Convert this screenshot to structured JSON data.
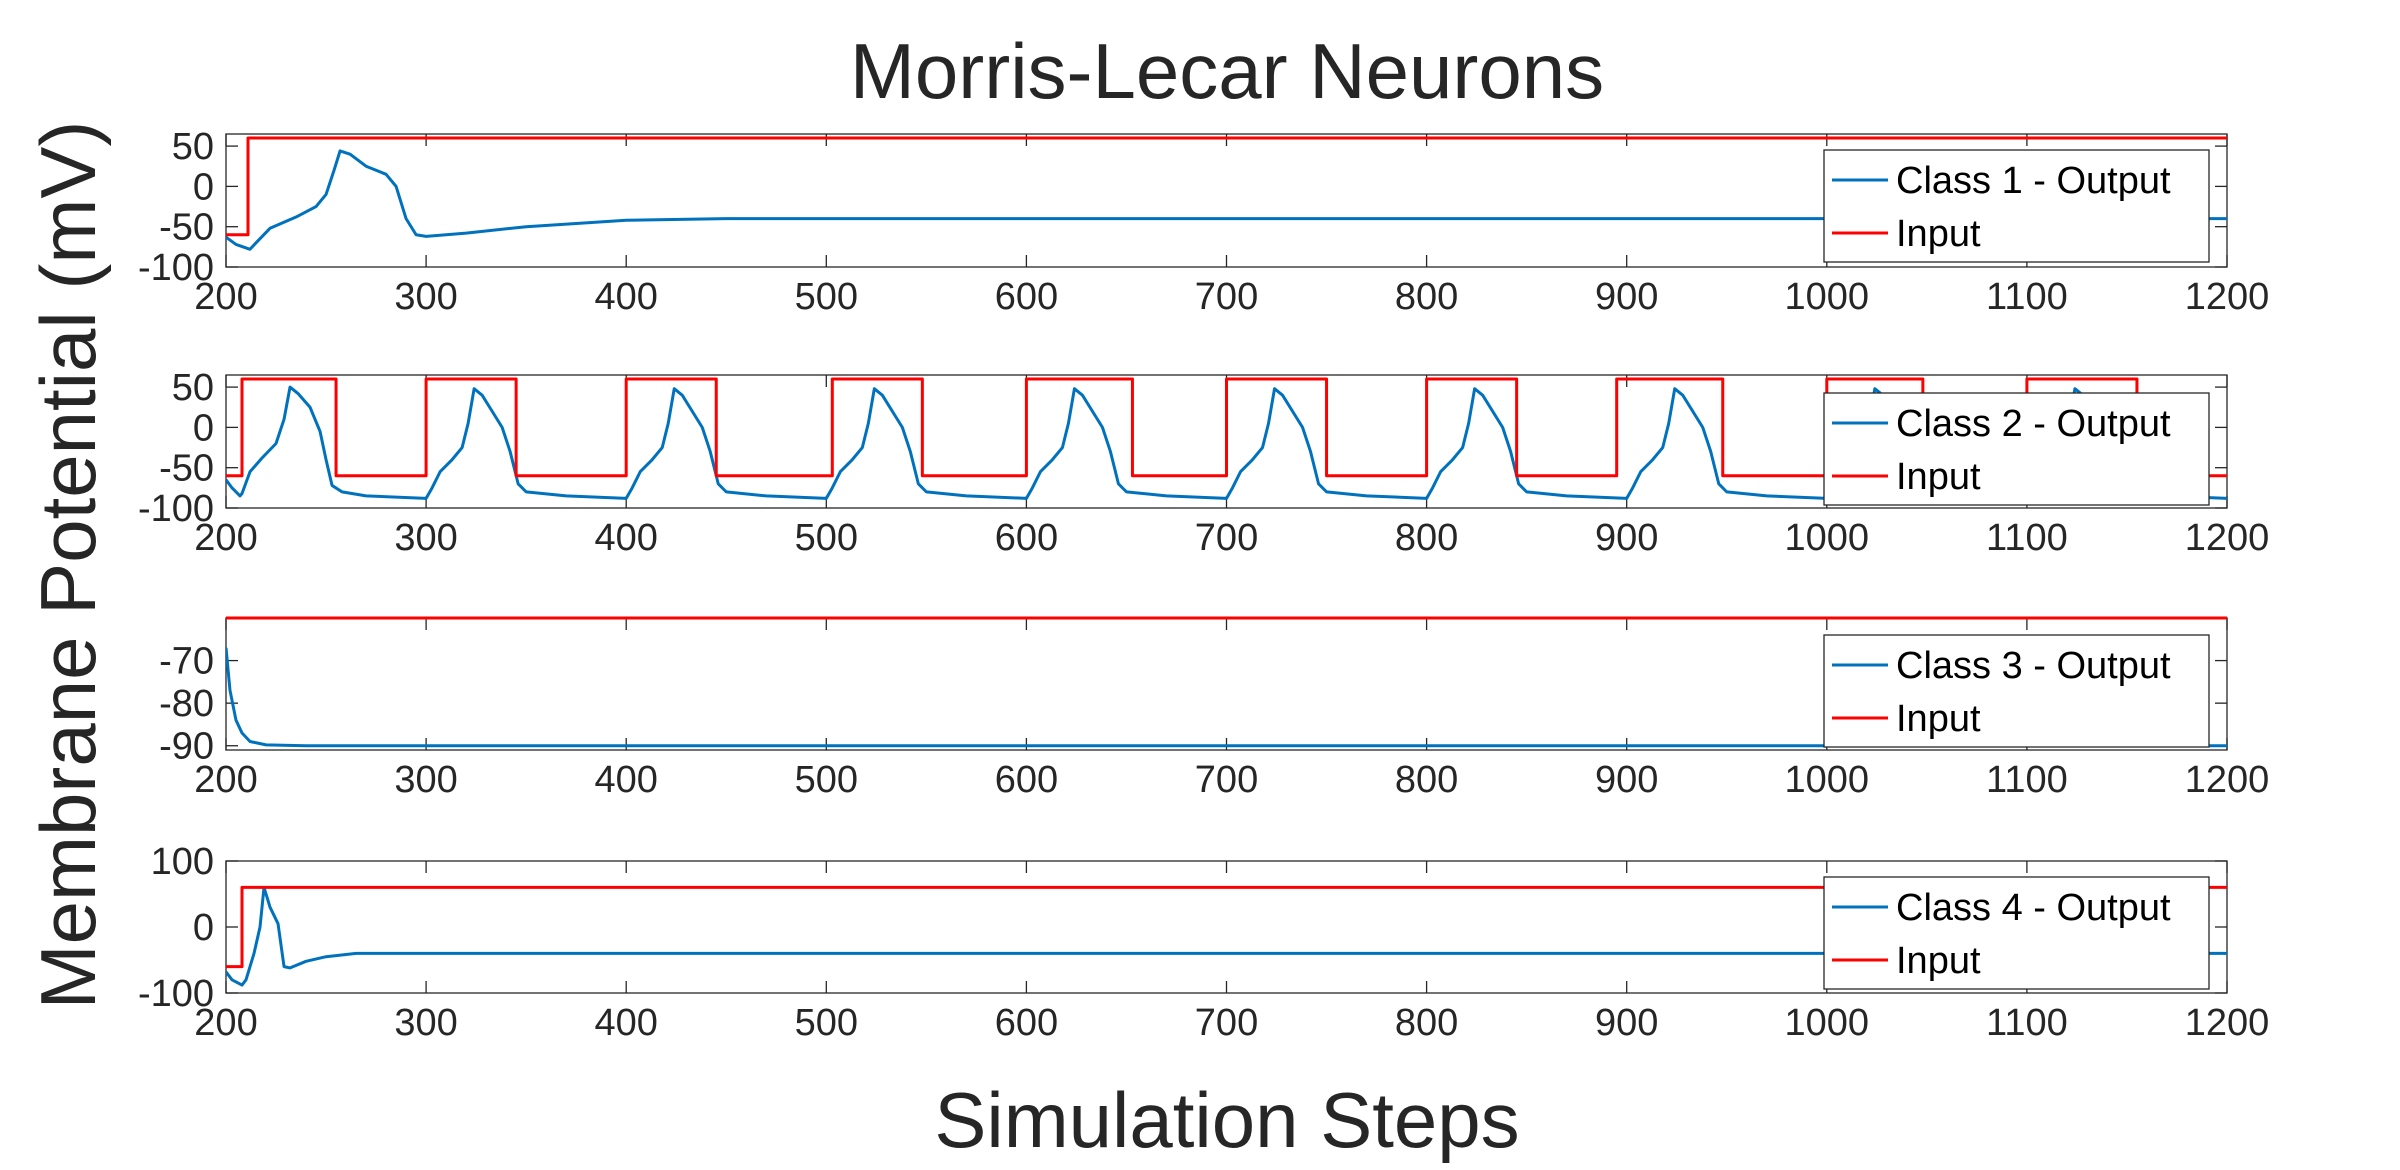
{
  "figure": {
    "title": "Morris-Lecar Neurons",
    "xlabel": "Simulation Steps",
    "ylabel": "Membrane Potential (mV)"
  },
  "colors": {
    "output": "#0072BD",
    "input": "#FF0000",
    "axis": "#262626"
  },
  "chart_data": [
    {
      "type": "line",
      "name": "class-1",
      "xlim": [
        200,
        1200
      ],
      "ylim": [
        -100,
        65
      ],
      "xticks": [
        200,
        300,
        400,
        500,
        600,
        700,
        800,
        900,
        1000,
        1100,
        1200
      ],
      "yticks": [
        50,
        0,
        -50,
        -100
      ],
      "legend": "top-right",
      "series": [
        {
          "name": "Class 1 - Output",
          "points": [
            [
              200,
              -63
            ],
            [
              205,
              -72
            ],
            [
              212,
              -78
            ],
            [
              215,
              -70
            ],
            [
              222,
              -52
            ],
            [
              235,
              -38
            ],
            [
              245,
              -25
            ],
            [
              250,
              -10
            ],
            [
              254,
              20
            ],
            [
              257,
              44
            ],
            [
              262,
              40
            ],
            [
              270,
              25
            ],
            [
              280,
              15
            ],
            [
              285,
              0
            ],
            [
              290,
              -40
            ],
            [
              295,
              -60
            ],
            [
              300,
              -62
            ],
            [
              320,
              -58
            ],
            [
              350,
              -50
            ],
            [
              400,
              -42
            ],
            [
              450,
              -40
            ],
            [
              500,
              -40
            ],
            [
              1200,
              -40
            ]
          ]
        },
        {
          "name": "Input",
          "points": [
            [
              200,
              -60
            ],
            [
              211,
              -60
            ],
            [
              211,
              60
            ],
            [
              1200,
              60
            ]
          ]
        }
      ]
    },
    {
      "type": "line",
      "name": "class-2",
      "xlim": [
        200,
        1200
      ],
      "ylim": [
        -100,
        65
      ],
      "xticks": [
        200,
        300,
        400,
        500,
        600,
        700,
        800,
        900,
        1000,
        1100,
        1200
      ],
      "yticks": [
        50,
        0,
        -50,
        -100
      ],
      "legend": "right",
      "series": [
        {
          "name": "Class 2 - Output",
          "points": [
            [
              200,
              -65
            ],
            [
              203,
              -75
            ],
            [
              207,
              -85
            ],
            [
              208,
              -82
            ],
            [
              212,
              -55
            ],
            [
              218,
              -38
            ],
            [
              225,
              -20
            ],
            [
              229,
              10
            ],
            [
              232,
              50
            ],
            [
              236,
              42
            ],
            [
              242,
              25
            ],
            [
              247,
              -5
            ],
            [
              250,
              -40
            ],
            [
              253,
              -72
            ],
            [
              258,
              -80
            ],
            [
              270,
              -85
            ],
            [
              300,
              -88
            ],
            [
              303,
              -75
            ],
            [
              307,
              -55
            ],
            [
              313,
              -40
            ],
            [
              318,
              -25
            ],
            [
              321,
              5
            ],
            [
              324,
              48
            ],
            [
              328,
              40
            ],
            [
              333,
              20
            ],
            [
              338,
              0
            ],
            [
              342,
              -30
            ],
            [
              346,
              -70
            ],
            [
              350,
              -80
            ],
            [
              370,
              -85
            ],
            [
              400,
              -88
            ],
            [
              403,
              -75
            ],
            [
              407,
              -55
            ],
            [
              413,
              -40
            ],
            [
              418,
              -25
            ],
            [
              421,
              5
            ],
            [
              424,
              48
            ],
            [
              428,
              40
            ],
            [
              433,
              20
            ],
            [
              438,
              0
            ],
            [
              442,
              -30
            ],
            [
              446,
              -70
            ],
            [
              450,
              -80
            ],
            [
              470,
              -85
            ],
            [
              500,
              -88
            ],
            [
              503,
              -75
            ],
            [
              507,
              -55
            ],
            [
              513,
              -40
            ],
            [
              518,
              -25
            ],
            [
              521,
              5
            ],
            [
              524,
              48
            ],
            [
              528,
              40
            ],
            [
              533,
              20
            ],
            [
              538,
              0
            ],
            [
              542,
              -30
            ],
            [
              546,
              -70
            ],
            [
              550,
              -80
            ],
            [
              570,
              -85
            ],
            [
              600,
              -88
            ],
            [
              603,
              -75
            ],
            [
              607,
              -55
            ],
            [
              613,
              -40
            ],
            [
              618,
              -25
            ],
            [
              621,
              5
            ],
            [
              624,
              48
            ],
            [
              628,
              40
            ],
            [
              633,
              20
            ],
            [
              638,
              0
            ],
            [
              642,
              -30
            ],
            [
              646,
              -70
            ],
            [
              650,
              -80
            ],
            [
              670,
              -85
            ],
            [
              700,
              -88
            ],
            [
              703,
              -75
            ],
            [
              707,
              -55
            ],
            [
              713,
              -40
            ],
            [
              718,
              -25
            ],
            [
              721,
              5
            ],
            [
              724,
              48
            ],
            [
              728,
              40
            ],
            [
              733,
              20
            ],
            [
              738,
              0
            ],
            [
              742,
              -30
            ],
            [
              746,
              -70
            ],
            [
              750,
              -80
            ],
            [
              770,
              -85
            ],
            [
              800,
              -88
            ],
            [
              803,
              -75
            ],
            [
              807,
              -55
            ],
            [
              813,
              -40
            ],
            [
              818,
              -25
            ],
            [
              821,
              5
            ],
            [
              824,
              48
            ],
            [
              828,
              40
            ],
            [
              833,
              20
            ],
            [
              838,
              0
            ],
            [
              842,
              -30
            ],
            [
              846,
              -70
            ],
            [
              850,
              -80
            ],
            [
              870,
              -85
            ],
            [
              900,
              -88
            ],
            [
              903,
              -75
            ],
            [
              907,
              -55
            ],
            [
              913,
              -40
            ],
            [
              918,
              -25
            ],
            [
              921,
              5
            ],
            [
              924,
              48
            ],
            [
              928,
              40
            ],
            [
              933,
              20
            ],
            [
              938,
              0
            ],
            [
              942,
              -30
            ],
            [
              946,
              -70
            ],
            [
              950,
              -80
            ],
            [
              970,
              -85
            ],
            [
              1000,
              -88
            ],
            [
              1003,
              -75
            ],
            [
              1007,
              -55
            ],
            [
              1013,
              -40
            ],
            [
              1018,
              -25
            ],
            [
              1021,
              5
            ],
            [
              1024,
              48
            ],
            [
              1028,
              40
            ],
            [
              1033,
              20
            ],
            [
              1038,
              0
            ],
            [
              1042,
              -30
            ],
            [
              1046,
              -70
            ],
            [
              1050,
              -80
            ],
            [
              1070,
              -85
            ],
            [
              1100,
              -88
            ],
            [
              1103,
              -75
            ],
            [
              1107,
              -55
            ],
            [
              1113,
              -40
            ],
            [
              1118,
              -25
            ],
            [
              1121,
              5
            ],
            [
              1124,
              48
            ],
            [
              1128,
              40
            ],
            [
              1133,
              20
            ],
            [
              1138,
              0
            ],
            [
              1142,
              -30
            ],
            [
              1146,
              -70
            ],
            [
              1150,
              -80
            ],
            [
              1170,
              -85
            ],
            [
              1200,
              -88
            ]
          ]
        },
        {
          "name": "Input",
          "points": [
            [
              200,
              -60
            ],
            [
              208,
              -60
            ],
            [
              208,
              60
            ],
            [
              255,
              60
            ],
            [
              255,
              -60
            ],
            [
              300,
              -60
            ],
            [
              300,
              60
            ],
            [
              345,
              60
            ],
            [
              345,
              -60
            ],
            [
              400,
              -60
            ],
            [
              400,
              60
            ],
            [
              445,
              60
            ],
            [
              445,
              -60
            ],
            [
              503,
              -60
            ],
            [
              503,
              60
            ],
            [
              548,
              60
            ],
            [
              548,
              -60
            ],
            [
              600,
              -60
            ],
            [
              600,
              60
            ],
            [
              653,
              60
            ],
            [
              653,
              -60
            ],
            [
              700,
              -60
            ],
            [
              700,
              60
            ],
            [
              750,
              60
            ],
            [
              750,
              -60
            ],
            [
              800,
              -60
            ],
            [
              800,
              60
            ],
            [
              845,
              60
            ],
            [
              845,
              -60
            ],
            [
              895,
              -60
            ],
            [
              895,
              60
            ],
            [
              948,
              60
            ],
            [
              948,
              -60
            ],
            [
              1000,
              -60
            ],
            [
              1000,
              60
            ],
            [
              1048,
              60
            ],
            [
              1048,
              -60
            ],
            [
              1100,
              -60
            ],
            [
              1100,
              60
            ],
            [
              1155,
              60
            ],
            [
              1155,
              -60
            ],
            [
              1200,
              -60
            ]
          ]
        }
      ]
    },
    {
      "type": "line",
      "name": "class-3",
      "xlim": [
        200,
        1200
      ],
      "ylim": [
        -91,
        -60
      ],
      "xticks": [
        200,
        300,
        400,
        500,
        600,
        700,
        800,
        900,
        1000,
        1100,
        1200
      ],
      "yticks": [
        -70,
        -80,
        -90
      ],
      "legend": "top-right",
      "series": [
        {
          "name": "Class 3 - Output",
          "points": [
            [
              200,
              -67
            ],
            [
              202,
              -77
            ],
            [
              205,
              -84
            ],
            [
              208,
              -87
            ],
            [
              212,
              -89
            ],
            [
              220,
              -89.8
            ],
            [
              240,
              -90
            ],
            [
              1200,
              -90
            ]
          ]
        },
        {
          "name": "Input",
          "points": [
            [
              200,
              -60
            ],
            [
              1200,
              -60
            ]
          ]
        }
      ]
    },
    {
      "type": "line",
      "name": "class-4",
      "xlim": [
        200,
        1200
      ],
      "ylim": [
        -100,
        100
      ],
      "xticks": [
        200,
        300,
        400,
        500,
        600,
        700,
        800,
        900,
        1000,
        1100,
        1200
      ],
      "yticks": [
        100,
        0,
        -100
      ],
      "legend": "top-right",
      "series": [
        {
          "name": "Class 4 - Output",
          "points": [
            [
              200,
              -68
            ],
            [
              203,
              -80
            ],
            [
              208,
              -88
            ],
            [
              210,
              -80
            ],
            [
              214,
              -40
            ],
            [
              217,
              0
            ],
            [
              219,
              60
            ],
            [
              222,
              30
            ],
            [
              226,
              5
            ],
            [
              229,
              -60
            ],
            [
              232,
              -62
            ],
            [
              240,
              -52
            ],
            [
              250,
              -45
            ],
            [
              265,
              -40
            ],
            [
              300,
              -40
            ],
            [
              1200,
              -40
            ]
          ]
        },
        {
          "name": "Input",
          "points": [
            [
              200,
              -60
            ],
            [
              208,
              -60
            ],
            [
              208,
              60
            ],
            [
              1200,
              60
            ]
          ]
        }
      ]
    }
  ]
}
